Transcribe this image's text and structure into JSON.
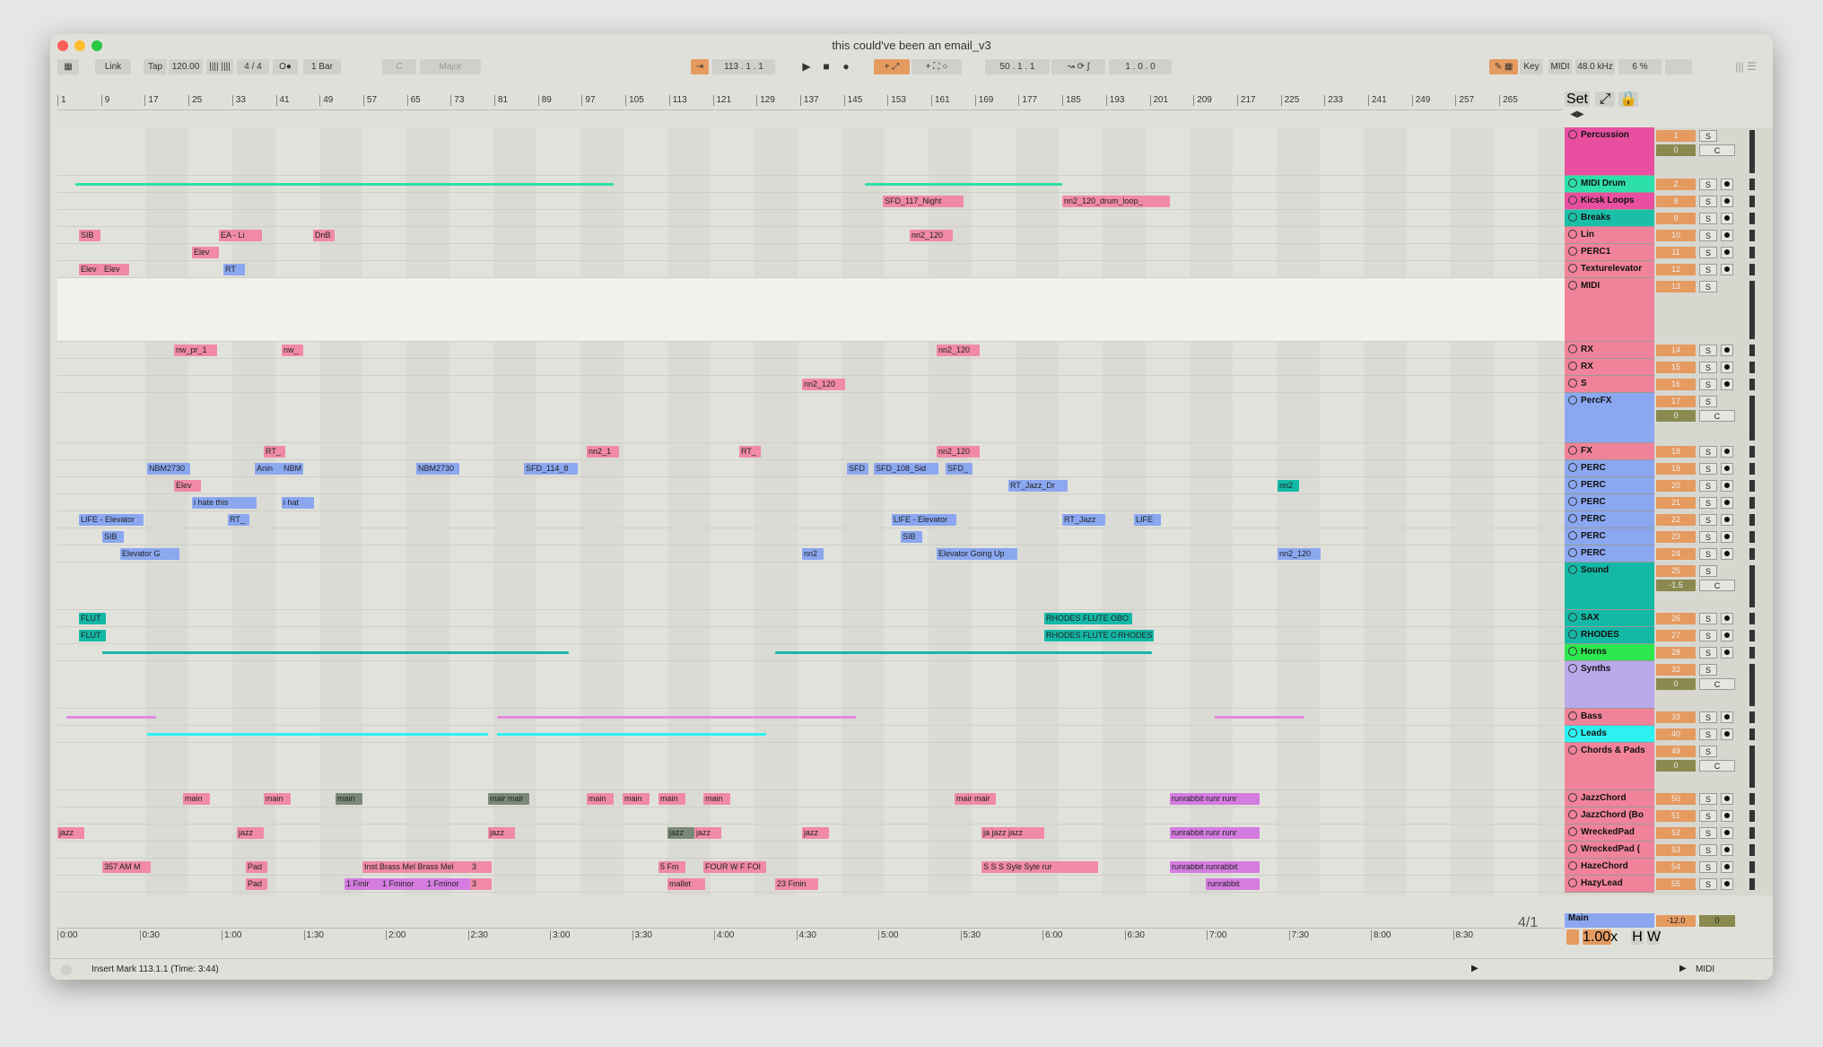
{
  "window": {
    "title": "this could've been an email_v3"
  },
  "control_bar": {
    "link": "Link",
    "tap": "Tap",
    "tempo": "120.00",
    "time_sig": "4 / 4",
    "metro": "O●",
    "quantize": "1 Bar",
    "key_root": "C",
    "scale": "Major",
    "position": "113 .   1 .   1",
    "loop_start": "50 .   1 .   1",
    "loop_len": "1 .   0 .   0",
    "key": "Key",
    "midi": "MIDI",
    "sample_rate": "48.0 kHz",
    "cpu": "6 %",
    "set": "Set"
  },
  "ruler": {
    "bars": [
      "1",
      "9",
      "17",
      "25",
      "33",
      "41",
      "49",
      "57",
      "65",
      "73",
      "81",
      "89",
      "97",
      "105",
      "113",
      "121",
      "129",
      "137",
      "145",
      "153",
      "161",
      "169",
      "177",
      "185",
      "193",
      "201",
      "209",
      "217",
      "225",
      "233",
      "241",
      "249",
      "257",
      "265"
    ]
  },
  "time_axis": {
    "ticks": [
      "0:00",
      "0:30",
      "1:00",
      "1:30",
      "2:00",
      "2:30",
      "3:00",
      "3:30",
      "4:00",
      "4:30",
      "5:00",
      "5:30",
      "6:00",
      "6:30",
      "7:00",
      "7:30",
      "8:00",
      "8:30"
    ]
  },
  "tracks": [
    {
      "name": "Percussion",
      "num": "1",
      "color": "#e84fa0",
      "group": true,
      "vol": "0",
      "pan": "C"
    },
    {
      "name": "MIDI Drum",
      "num": "2",
      "color": "#2ddfa8"
    },
    {
      "name": "Kicsk Loops",
      "num": "8",
      "color": "#e84fa0"
    },
    {
      "name": "Breaks",
      "num": "9",
      "color": "#1bbfa8"
    },
    {
      "name": "Lin",
      "num": "10",
      "color": "#f0839a"
    },
    {
      "name": "PERC1",
      "num": "11",
      "color": "#f0839a"
    },
    {
      "name": "Texturelevator",
      "num": "12",
      "color": "#f0839a"
    },
    {
      "name": "MIDI",
      "num": "13",
      "color": "#f0839a",
      "group": true
    },
    {
      "name": "RX",
      "num": "14",
      "color": "#f0839a"
    },
    {
      "name": "RX",
      "num": "15",
      "color": "#f0839a"
    },
    {
      "name": "S",
      "num": "16",
      "color": "#f0839a"
    },
    {
      "name": "PercFX",
      "num": "17",
      "color": "#8aa7f0",
      "group": true,
      "vol": "0",
      "pan": "C"
    },
    {
      "name": "FX",
      "num": "18",
      "color": "#f0839a"
    },
    {
      "name": "PERC",
      "num": "19",
      "color": "#8aa7f0"
    },
    {
      "name": "PERC",
      "num": "20",
      "color": "#8aa7f0"
    },
    {
      "name": "PERC",
      "num": "21",
      "color": "#8aa7f0"
    },
    {
      "name": "PERC",
      "num": "22",
      "color": "#8aa7f0"
    },
    {
      "name": "PERC",
      "num": "23",
      "color": "#8aa7f0"
    },
    {
      "name": "PERC",
      "num": "24",
      "color": "#8aa7f0"
    },
    {
      "name": "Sound",
      "num": "25",
      "color": "#14b8a6",
      "group": true,
      "vol": "-1.5",
      "pan": "C"
    },
    {
      "name": "SAX",
      "num": "26",
      "color": "#14b8a6"
    },
    {
      "name": "RHODES",
      "num": "27",
      "color": "#14b8a6"
    },
    {
      "name": "Horns",
      "num": "28",
      "color": "#2ee84f"
    },
    {
      "name": "Synths",
      "num": "32",
      "color": "#b9a8ea",
      "group": true,
      "vol": "0",
      "pan": "C"
    },
    {
      "name": "Bass",
      "num": "33",
      "color": "#f0839a"
    },
    {
      "name": "Leads",
      "num": "40",
      "color": "#2df0f0"
    },
    {
      "name": "Chords & Pads",
      "num": "49",
      "color": "#f0839a",
      "group": true,
      "vol": "0",
      "pan": "C"
    },
    {
      "name": "JazzChord",
      "num": "50",
      "color": "#f0839a"
    },
    {
      "name": "JazzChord (Bo",
      "num": "51",
      "color": "#f0839a"
    },
    {
      "name": "WreckedPad",
      "num": "52",
      "color": "#f0839a"
    },
    {
      "name": "WreckedPad (",
      "num": "53",
      "color": "#f0839a"
    },
    {
      "name": "HazeChord",
      "num": "54",
      "color": "#f0839a"
    },
    {
      "name": "HazyLead",
      "num": "55",
      "color": "#f0839a"
    }
  ],
  "clips": [
    {
      "lane": 2,
      "text": "SFD_117_Night",
      "color": "#f08aa6"
    },
    {
      "lane": 2,
      "text": "nn2_120_drum_loop_",
      "color": "#f08aa6"
    },
    {
      "lane": 4,
      "text": "SIB",
      "color": "#f08aa6"
    },
    {
      "lane": 4,
      "text": "EA - Li",
      "color": "#f08aa6"
    },
    {
      "lane": 4,
      "text": "DnB",
      "color": "#f08aa6"
    },
    {
      "lane": 4,
      "text": "nn2_120",
      "color": "#f08aa6"
    },
    {
      "lane": 5,
      "text": "Elev",
      "color": "#f08aa6"
    },
    {
      "lane": 6,
      "text": "Elev",
      "color": "#f08aa6"
    },
    {
      "lane": 6,
      "text": "Elev",
      "color": "#f08aa6"
    },
    {
      "lane": 6,
      "text": "RT",
      "color": "#8aa7f0"
    },
    {
      "lane": 8,
      "text": "nw_pr_1",
      "color": "#f08aa6"
    },
    {
      "lane": 8,
      "text": "nw_",
      "color": "#f08aa6"
    },
    {
      "lane": 8,
      "text": "nn2_120",
      "color": "#f08aa6"
    },
    {
      "lane": 10,
      "text": "nn2_120",
      "color": "#f08aa6"
    },
    {
      "lane": 12,
      "text": "RT_",
      "color": "#f08aa6"
    },
    {
      "lane": 12,
      "text": "nn2_1",
      "color": "#f08aa6"
    },
    {
      "lane": 12,
      "text": "RT_",
      "color": "#f08aa6"
    },
    {
      "lane": 12,
      "text": "nn2_120",
      "color": "#f08aa6"
    },
    {
      "lane": 13,
      "text": "NBM2730",
      "color": "#8aa7f0"
    },
    {
      "lane": 13,
      "text": "Anin",
      "color": "#8aa7f0"
    },
    {
      "lane": 13,
      "text": "NBM",
      "color": "#8aa7f0"
    },
    {
      "lane": 13,
      "text": "NBM2730",
      "color": "#8aa7f0"
    },
    {
      "lane": 13,
      "text": "SFD_114_8",
      "color": "#8aa7f0"
    },
    {
      "lane": 13,
      "text": "SFD",
      "color": "#8aa7f0"
    },
    {
      "lane": 13,
      "text": "SFD_108_Sid",
      "color": "#8aa7f0"
    },
    {
      "lane": 13,
      "text": "SFD_",
      "color": "#8aa7f0"
    },
    {
      "lane": 14,
      "text": "Elev",
      "color": "#f08aa6"
    },
    {
      "lane": 14,
      "text": "RT_Jazz_Dr",
      "color": "#8aa7f0"
    },
    {
      "lane": 14,
      "text": "nn2",
      "color": "#14b8a6"
    },
    {
      "lane": 15,
      "text": "i hate this",
      "color": "#8aa7f0"
    },
    {
      "lane": 15,
      "text": "i hat",
      "color": "#8aa7f0"
    },
    {
      "lane": 16,
      "text": "LIFE - Elevator",
      "color": "#8aa7f0"
    },
    {
      "lane": 16,
      "text": "RT_",
      "color": "#8aa7f0"
    },
    {
      "lane": 16,
      "text": "LIFE - Elevator",
      "color": "#8aa7f0"
    },
    {
      "lane": 16,
      "text": "RT_Jazz",
      "color": "#8aa7f0"
    },
    {
      "lane": 16,
      "text": "LIFE",
      "color": "#8aa7f0"
    },
    {
      "lane": 17,
      "text": "SIB",
      "color": "#8aa7f0"
    },
    {
      "lane": 17,
      "text": "SIB",
      "color": "#8aa7f0"
    },
    {
      "lane": 18,
      "text": "Elevator G",
      "color": "#8aa7f0"
    },
    {
      "lane": 18,
      "text": "nn2",
      "color": "#8aa7f0"
    },
    {
      "lane": 18,
      "text": "Elevator Going Up",
      "color": "#8aa7f0"
    },
    {
      "lane": 18,
      "text": "nn2_120",
      "color": "#8aa7f0"
    },
    {
      "lane": 20,
      "text": "FLUT",
      "color": "#14b8a6"
    },
    {
      "lane": 20,
      "text": "RHODES FLUTE OBO",
      "color": "#14b8a6"
    },
    {
      "lane": 21,
      "text": "FLUT",
      "color": "#14b8a6"
    },
    {
      "lane": 21,
      "text": "RHODES FLUTE OBO",
      "color": "#14b8a6"
    },
    {
      "lane": 21,
      "text": "RHODES",
      "color": "#14b8a6"
    },
    {
      "lane": 27,
      "text": "main",
      "color": "#f08aa6"
    },
    {
      "lane": 27,
      "text": "main",
      "color": "#f08aa6"
    },
    {
      "lane": 27,
      "text": "main",
      "color": "#7a8a78"
    },
    {
      "lane": 27,
      "text": "mair mair",
      "color": "#7a8a78"
    },
    {
      "lane": 27,
      "text": "main",
      "color": "#f08aa6"
    },
    {
      "lane": 27,
      "text": "main",
      "color": "#f08aa6"
    },
    {
      "lane": 27,
      "text": "main",
      "color": "#f08aa6"
    },
    {
      "lane": 27,
      "text": "main",
      "color": "#f08aa6"
    },
    {
      "lane": 27,
      "text": "mair mair",
      "color": "#f08aa6"
    },
    {
      "lane": 27,
      "text": "runrabbit runr runr",
      "color": "#d47ce0"
    },
    {
      "lane": 29,
      "text": "jazz",
      "color": "#f08aa6"
    },
    {
      "lane": 29,
      "text": "jazz",
      "color": "#f08aa6"
    },
    {
      "lane": 29,
      "text": "jazz",
      "color": "#f08aa6"
    },
    {
      "lane": 29,
      "text": "jazz",
      "color": "#7a8a78"
    },
    {
      "lane": 29,
      "text": "jazz",
      "color": "#f08aa6"
    },
    {
      "lane": 29,
      "text": "jazz",
      "color": "#f08aa6"
    },
    {
      "lane": 29,
      "text": "ja jazz jazz",
      "color": "#f08aa6"
    },
    {
      "lane": 29,
      "text": "runrabbit runr runr",
      "color": "#d47ce0"
    },
    {
      "lane": 31,
      "text": "357 AM M",
      "color": "#f08aa6"
    },
    {
      "lane": 31,
      "text": "Pad",
      "color": "#f08aa6"
    },
    {
      "lane": 31,
      "text": "Inst Brass Mel Brass Mel",
      "color": "#f08aa6"
    },
    {
      "lane": 31,
      "text": "3",
      "color": "#f08aa6"
    },
    {
      "lane": 31,
      "text": "5 Fm",
      "color": "#f08aa6"
    },
    {
      "lane": 31,
      "text": "FOUR W F FOI",
      "color": "#f08aa6"
    },
    {
      "lane": 31,
      "text": "S S S Syle Syle rur",
      "color": "#f08aa6"
    },
    {
      "lane": 31,
      "text": "runrabbit runrabbit",
      "color": "#d47ce0"
    },
    {
      "lane": 32,
      "text": "Pad",
      "color": "#f08aa6"
    },
    {
      "lane": 32,
      "text": "1 Fmir",
      "color": "#d47ce0"
    },
    {
      "lane": 32,
      "text": "1 Fminor",
      "color": "#d47ce0"
    },
    {
      "lane": 32,
      "text": "1 Fminor",
      "color": "#d47ce0"
    },
    {
      "lane": 32,
      "text": "3",
      "color": "#f08aa6"
    },
    {
      "lane": 32,
      "text": "mallet",
      "color": "#f08aa6"
    },
    {
      "lane": 32,
      "text": "23 Fmin",
      "color": "#f08aa6"
    },
    {
      "lane": 32,
      "text": "runrabbit",
      "color": "#d47ce0"
    }
  ],
  "main_track": {
    "name": "Main",
    "volume": "-12.0",
    "pan": "0"
  },
  "loop_display": "4/1",
  "zoom": "1.00x",
  "status": {
    "message": "Insert Mark 113.1.1 (Time: 3:44)",
    "midi": "MIDI"
  }
}
